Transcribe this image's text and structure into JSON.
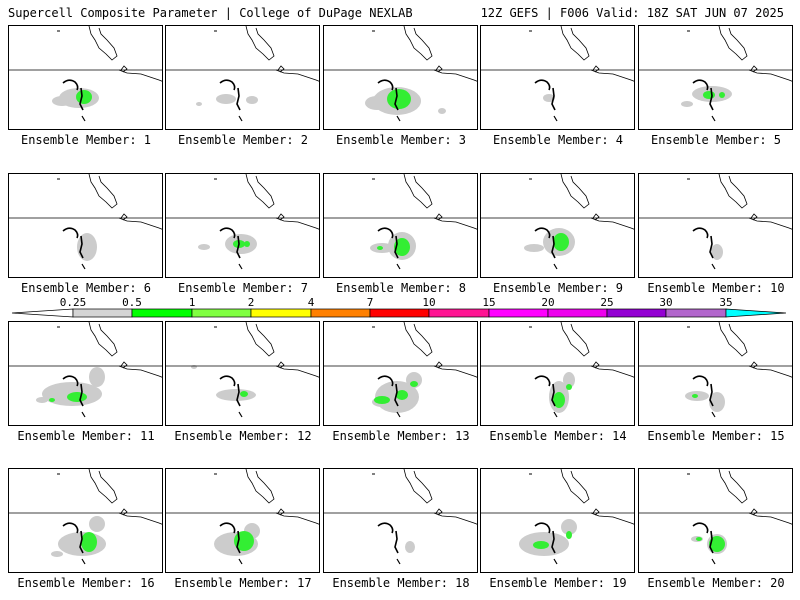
{
  "header": {
    "left": "Supercell Composite Parameter | College of DuPage NEXLAB",
    "right": "12Z GEFS | F006 Valid: 18Z SAT JUN 07 2025"
  },
  "members": [
    {
      "label": "Ensemble Member: 1",
      "gray": [
        [
          -8,
          2,
          20,
          10
        ],
        [
          -25,
          5,
          10,
          5
        ]
      ],
      "green": [
        [
          -3,
          1,
          8,
          7
        ]
      ]
    },
    {
      "label": "Ensemble Member: 2",
      "gray": [
        [
          -18,
          3,
          10,
          5
        ],
        [
          8,
          4,
          6,
          4
        ],
        [
          -45,
          8,
          3,
          2
        ]
      ],
      "green": []
    },
    {
      "label": "Ensemble Member: 3",
      "gray": [
        [
          -5,
          5,
          24,
          14
        ],
        [
          -25,
          7,
          12,
          7
        ],
        [
          40,
          15,
          4,
          3
        ]
      ],
      "green": [
        [
          -3,
          3,
          12,
          10
        ]
      ]
    },
    {
      "label": "Ensemble Member: 4",
      "gray": [
        [
          -10,
          2,
          6,
          4
        ]
      ],
      "green": []
    },
    {
      "label": "Ensemble Member: 5",
      "gray": [
        [
          -5,
          -2,
          20,
          8
        ],
        [
          -30,
          8,
          6,
          3
        ]
      ],
      "green": [
        [
          -8,
          -1,
          6,
          4
        ],
        [
          5,
          -1,
          3,
          3
        ]
      ]
    },
    {
      "label": "Ensemble Member: 6",
      "gray": [
        [
          0,
          3,
          10,
          14
        ]
      ],
      "green": []
    },
    {
      "label": "Ensemble Member: 7",
      "gray": [
        [
          -3,
          0,
          16,
          10
        ],
        [
          -40,
          3,
          6,
          3
        ],
        [
          10,
          38,
          4,
          4
        ]
      ],
      "green": [
        [
          -5,
          0,
          6,
          4
        ],
        [
          3,
          0,
          3,
          3
        ]
      ]
    },
    {
      "label": "Ensemble Member: 8",
      "gray": [
        [
          0,
          2,
          14,
          14
        ],
        [
          -20,
          4,
          12,
          5
        ]
      ],
      "green": [
        [
          0,
          3,
          8,
          9
        ],
        [
          -22,
          4,
          3,
          2
        ]
      ]
    },
    {
      "label": "Ensemble Member: 9",
      "gray": [
        [
          0,
          -2,
          16,
          14
        ],
        [
          -25,
          4,
          10,
          4
        ]
      ],
      "green": [
        [
          2,
          -2,
          8,
          9
        ]
      ]
    },
    {
      "label": "Ensemble Member: 10",
      "gray": [
        [
          0,
          8,
          6,
          8
        ]
      ],
      "green": []
    },
    {
      "label": "Ensemble Member: 11",
      "gray": [
        [
          -15,
          2,
          30,
          12
        ],
        [
          10,
          -15,
          8,
          10
        ],
        [
          -45,
          8,
          6,
          3
        ]
      ],
      "green": [
        [
          -10,
          5,
          10,
          5
        ],
        [
          -35,
          8,
          3,
          2
        ]
      ]
    },
    {
      "label": "Ensemble Member: 12",
      "gray": [
        [
          -8,
          3,
          20,
          6
        ],
        [
          -50,
          -25,
          3,
          2
        ]
      ],
      "green": [
        [
          0,
          2,
          4,
          3
        ]
      ]
    },
    {
      "label": "Ensemble Member: 13",
      "gray": [
        [
          -5,
          5,
          22,
          16
        ],
        [
          12,
          -12,
          8,
          8
        ],
        [
          -20,
          10,
          10,
          5
        ]
      ],
      "green": [
        [
          -20,
          8,
          8,
          4
        ],
        [
          12,
          -8,
          4,
          3
        ],
        [
          0,
          3,
          6,
          5
        ]
      ]
    },
    {
      "label": "Ensemble Member: 14",
      "gray": [
        [
          0,
          5,
          10,
          16
        ],
        [
          10,
          -12,
          6,
          8
        ]
      ],
      "green": [
        [
          0,
          8,
          6,
          8
        ],
        [
          10,
          -5,
          3,
          3
        ]
      ]
    },
    {
      "label": "Ensemble Member: 15",
      "gray": [
        [
          -20,
          4,
          12,
          5
        ],
        [
          0,
          10,
          8,
          10
        ]
      ],
      "green": [
        [
          -22,
          4,
          3,
          2
        ]
      ]
    },
    {
      "label": "Ensemble Member: 16",
      "gray": [
        [
          -5,
          5,
          24,
          12
        ],
        [
          10,
          -15,
          8,
          8
        ],
        [
          -30,
          15,
          6,
          3
        ]
      ],
      "green": [
        [
          2,
          3,
          8,
          10
        ]
      ]
    },
    {
      "label": "Ensemble Member: 17",
      "gray": [
        [
          -8,
          5,
          22,
          12
        ],
        [
          8,
          -8,
          8,
          8
        ]
      ],
      "green": [
        [
          0,
          2,
          10,
          10
        ]
      ]
    },
    {
      "label": "Ensemble Member: 18",
      "gray": [
        [
          8,
          8,
          5,
          6
        ]
      ],
      "green": []
    },
    {
      "label": "Ensemble Member: 19",
      "gray": [
        [
          -15,
          5,
          25,
          12
        ],
        [
          10,
          -12,
          8,
          8
        ]
      ],
      "green": [
        [
          -18,
          6,
          8,
          4
        ],
        [
          10,
          -4,
          3,
          4
        ]
      ]
    },
    {
      "label": "Ensemble Member: 20",
      "gray": [
        [
          0,
          5,
          10,
          10
        ],
        [
          -20,
          0,
          6,
          3
        ]
      ],
      "green": [
        [
          0,
          5,
          8,
          8
        ],
        [
          -18,
          0,
          3,
          2
        ]
      ]
    }
  ],
  "colorbar": {
    "ticks": [
      "0.25",
      "0.5",
      "1",
      "2",
      "4",
      "7",
      "10",
      "15",
      "20",
      "25",
      "30",
      "35"
    ],
    "colors": [
      "#ffffff",
      "#d4d4d4",
      "#00ff00",
      "#80ff40",
      "#ffff00",
      "#ff8000",
      "#ff0000",
      "#ff1493",
      "#ff00ff",
      "#ee00ee",
      "#9400d3",
      "#b266cc",
      "#00ffff"
    ]
  }
}
